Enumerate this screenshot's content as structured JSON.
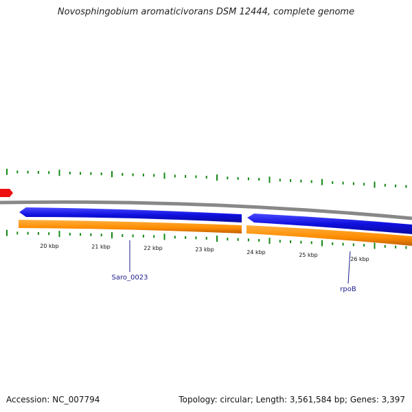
{
  "title": "Novosphingobium aromaticivorans DSM 12444, complete genome",
  "footer": {
    "accession": "Accession: NC_007794",
    "summary": "Topology: circular; Length: 3,561,584 bp; Genes: 3,397"
  },
  "scale": {
    "labels": [
      "20 kbp",
      "21 kbp",
      "22 kbp",
      "23 kbp",
      "24 kbp",
      "25 kbp",
      "26 kbp"
    ]
  },
  "genes": [
    {
      "label": "Saro_0023"
    },
    {
      "label": "rpoB"
    }
  ],
  "colors": {
    "backbone": "#888888",
    "cds_forward": "#1414e6",
    "cds_reverse": "#ff8c00",
    "tick": "#118811",
    "marker": "#ee1111",
    "gene_label": "#1a1a8c"
  }
}
